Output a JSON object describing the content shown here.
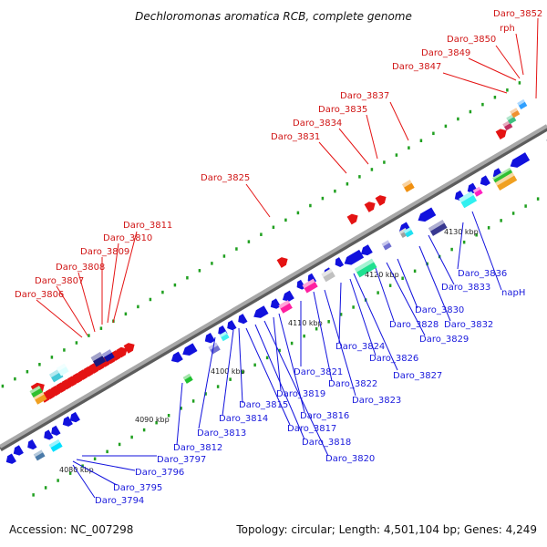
{
  "title": "Dechloromonas aromatica RCB, complete genome",
  "footer": {
    "accession": "Accession: NC_007298",
    "summary": "Topology: circular; Length: 4,501,104 bp; Genes: 4,249"
  },
  "colors": {
    "backbone": "#8a8a8a",
    "forward_gene": "#e41313",
    "reverse_gene": "#1111dd",
    "other_feature": "#20a020",
    "forward_label": "#d01616",
    "reverse_label": "#1a1adc"
  },
  "ticks": [
    "4080 kbp",
    "4090 kbp",
    "4100 kbp",
    "4110 kbp",
    "4120 kbp",
    "4130 kbp"
  ],
  "forward_labels": [
    "Daro_3852",
    "rph",
    "Daro_3850",
    "Daro_3849",
    "Daro_3847",
    "Daro_3837",
    "Daro_3835",
    "Daro_3834",
    "Daro_3831",
    "Daro_3825",
    "Daro_3811",
    "Daro_3810",
    "Daro_3809",
    "Daro_3808",
    "Daro_3807",
    "Daro_3806"
  ],
  "reverse_labels": [
    "Daro_3836",
    "napH",
    "Daro_3833",
    "Daro_3830",
    "Daro_3832",
    "Daro_3828",
    "Daro_3829",
    "Daro_3824",
    "Daro_3826",
    "Daro_3827",
    "Daro_3821",
    "Daro_3822",
    "Daro_3823",
    "Daro_3819",
    "Daro_3816",
    "Daro_3815",
    "Daro_3814",
    "Daro_3817",
    "Daro_3813",
    "Daro_3818",
    "Daro_3812",
    "Daro_3820",
    "Daro_3797",
    "Daro_3796",
    "Daro_3795",
    "Daro_3794"
  ]
}
